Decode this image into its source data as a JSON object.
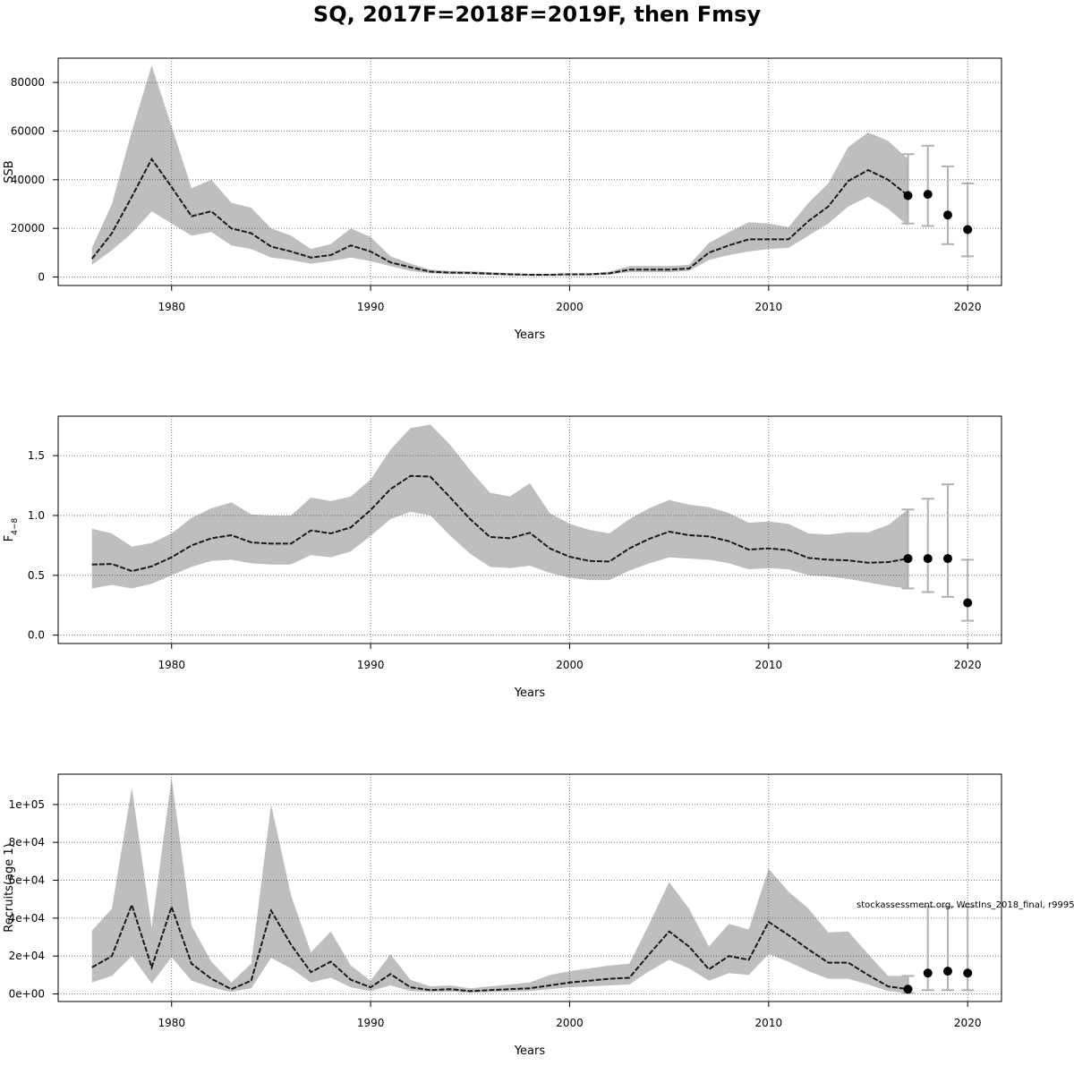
{
  "title": "SQ, 2017F=2018F=2019F, then Fmsy",
  "watermark": "stockassessment.org, WestIns_2018_final, r9995",
  "colors": {
    "band": "#bebebe",
    "line": "#1a1a1a",
    "errorbar": "#b0b0b0",
    "point": "#000000",
    "grid": "#555555"
  },
  "chart_data": [
    {
      "type": "line",
      "ylabel": "SSB",
      "xlabel": "Years",
      "xlim": [
        1974.3,
        2021.7
      ],
      "ylim": [
        -3500,
        90000
      ],
      "xticks": [
        1980,
        1990,
        2000,
        2010,
        2020
      ],
      "yticks": [
        0,
        20000,
        40000,
        60000,
        80000
      ],
      "ytick_labels": [
        "0",
        "20000",
        "40000",
        "60000",
        "80000"
      ],
      "grid": true,
      "x": [
        1976,
        1977,
        1978,
        1979,
        1980,
        1981,
        1982,
        1983,
        1984,
        1985,
        1986,
        1987,
        1988,
        1989,
        1990,
        1991,
        1992,
        1993,
        1994,
        1995,
        1996,
        1997,
        1998,
        1999,
        2000,
        2001,
        2002,
        2003,
        2004,
        2005,
        2006,
        2007,
        2008,
        2009,
        2010,
        2011,
        2012,
        2013,
        2014,
        2015,
        2016,
        2017
      ],
      "estimate": [
        7500,
        18000,
        33000,
        48500,
        37000,
        25000,
        27000,
        20000,
        18000,
        12500,
        10500,
        8000,
        9000,
        13000,
        10500,
        6000,
        4000,
        2200,
        1800,
        1700,
        1400,
        1100,
        900,
        900,
        1100,
        1100,
        1500,
        3000,
        3000,
        3000,
        3500,
        10000,
        13000,
        15500,
        15500,
        15500,
        23000,
        29000,
        39500,
        44000,
        40000,
        33500
      ],
      "lower": [
        5000,
        11000,
        18000,
        27000,
        22000,
        17000,
        18500,
        13000,
        11500,
        8000,
        7000,
        5500,
        6500,
        8000,
        6500,
        4500,
        2500,
        1500,
        1200,
        1100,
        800,
        600,
        500,
        500,
        700,
        700,
        1000,
        2000,
        2000,
        2000,
        2500,
        7000,
        9000,
        10500,
        11500,
        12000,
        17000,
        22000,
        29000,
        33000,
        28000,
        21000
      ],
      "upper": [
        12000,
        30000,
        60000,
        87000,
        62000,
        36500,
        40000,
        30500,
        28500,
        20000,
        17000,
        11500,
        13500,
        20000,
        16500,
        8500,
        5500,
        3000,
        2500,
        2400,
        2000,
        1600,
        1300,
        1300,
        1500,
        1500,
        2200,
        4500,
        4500,
        4500,
        5000,
        14000,
        18500,
        22500,
        22000,
        20500,
        30500,
        38500,
        53500,
        59500,
        56000,
        48500
      ],
      "forecast": {
        "x": [
          2017,
          2018,
          2019,
          2020
        ],
        "median": [
          33500,
          34000,
          25500,
          19500
        ],
        "lower": [
          22000,
          21000,
          13500,
          8500
        ],
        "upper": [
          50500,
          54000,
          45500,
          38500
        ]
      }
    },
    {
      "type": "line",
      "ylabel": "F",
      "ylabel_subscript": "4−8",
      "xlabel": "Years",
      "xlim": [
        1974.3,
        2021.7
      ],
      "ylim": [
        -0.07,
        1.83
      ],
      "xticks": [
        1980,
        1990,
        2000,
        2010,
        2020
      ],
      "yticks": [
        0.0,
        0.5,
        1.0,
        1.5
      ],
      "ytick_labels": [
        "0.0",
        "0.5",
        "1.0",
        "1.5"
      ],
      "grid": true,
      "x": [
        1976,
        1977,
        1978,
        1979,
        1980,
        1981,
        1982,
        1983,
        1984,
        1985,
        1986,
        1987,
        1988,
        1989,
        1990,
        1991,
        1992,
        1993,
        1994,
        1995,
        1996,
        1997,
        1998,
        1999,
        2000,
        2001,
        2002,
        2003,
        2004,
        2005,
        2006,
        2007,
        2008,
        2009,
        2010,
        2011,
        2012,
        2013,
        2014,
        2015,
        2016,
        2017
      ],
      "estimate": [
        0.59,
        0.595,
        0.535,
        0.575,
        0.65,
        0.75,
        0.81,
        0.835,
        0.775,
        0.765,
        0.765,
        0.875,
        0.85,
        0.9,
        1.045,
        1.22,
        1.33,
        1.325,
        1.15,
        0.97,
        0.82,
        0.81,
        0.855,
        0.725,
        0.655,
        0.62,
        0.615,
        0.725,
        0.805,
        0.865,
        0.835,
        0.825,
        0.785,
        0.715,
        0.725,
        0.71,
        0.645,
        0.63,
        0.625,
        0.605,
        0.61,
        0.64
      ],
      "lower": [
        0.39,
        0.42,
        0.39,
        0.43,
        0.5,
        0.57,
        0.62,
        0.63,
        0.6,
        0.59,
        0.59,
        0.67,
        0.65,
        0.7,
        0.83,
        0.97,
        1.03,
        1.0,
        0.83,
        0.68,
        0.57,
        0.56,
        0.58,
        0.52,
        0.48,
        0.46,
        0.46,
        0.54,
        0.6,
        0.65,
        0.64,
        0.63,
        0.6,
        0.55,
        0.56,
        0.55,
        0.5,
        0.49,
        0.47,
        0.44,
        0.41,
        0.39
      ],
      "upper": [
        0.89,
        0.85,
        0.74,
        0.77,
        0.85,
        0.98,
        1.06,
        1.11,
        1.01,
        1.0,
        1.0,
        1.15,
        1.12,
        1.16,
        1.3,
        1.55,
        1.73,
        1.76,
        1.59,
        1.38,
        1.19,
        1.16,
        1.27,
        1.02,
        0.93,
        0.88,
        0.85,
        0.97,
        1.06,
        1.13,
        1.09,
        1.07,
        1.02,
        0.94,
        0.95,
        0.93,
        0.85,
        0.84,
        0.86,
        0.86,
        0.92,
        1.05
      ],
      "forecast": {
        "x": [
          2017,
          2018,
          2019,
          2020
        ],
        "median": [
          0.64,
          0.64,
          0.64,
          0.27
        ],
        "lower": [
          0.39,
          0.36,
          0.32,
          0.12
        ],
        "upper": [
          1.05,
          1.14,
          1.26,
          0.63
        ]
      }
    },
    {
      "type": "line",
      "ylabel": "Recruits(age 1)",
      "xlabel": "Years",
      "xlim": [
        1974.3,
        2021.7
      ],
      "ylim": [
        -4000,
        116000
      ],
      "xticks": [
        1980,
        1990,
        2000,
        2010,
        2020
      ],
      "yticks": [
        0,
        20000,
        40000,
        60000,
        80000,
        100000
      ],
      "ytick_labels": [
        "0e+00",
        "2e+04",
        "4e+04",
        "6e+04",
        "8e+04",
        "1e+05"
      ],
      "grid": true,
      "x": [
        1976,
        1977,
        1978,
        1979,
        1980,
        1981,
        1982,
        1983,
        1984,
        1985,
        1986,
        1987,
        1988,
        1989,
        1990,
        1991,
        1992,
        1993,
        1994,
        1995,
        1996,
        1997,
        1998,
        1999,
        2000,
        2001,
        2002,
        2003,
        2004,
        2005,
        2006,
        2007,
        2008,
        2009,
        2010,
        2011,
        2012,
        2013,
        2014,
        2015,
        2016,
        2017
      ],
      "estimate": [
        14000,
        20000,
        47000,
        14000,
        46000,
        16000,
        8000,
        2500,
        7000,
        44000,
        26000,
        11500,
        17000,
        7500,
        3500,
        10500,
        3500,
        2000,
        2500,
        1500,
        2000,
        2500,
        3000,
        4500,
        6000,
        7000,
        8000,
        8500,
        21000,
        33000,
        25000,
        13000,
        20000,
        18000,
        38000,
        31000,
        23500,
        16500,
        16500,
        10000,
        4000,
        2500
      ],
      "lower": [
        6000,
        9500,
        20000,
        5500,
        19500,
        7000,
        3500,
        1000,
        3000,
        19000,
        13500,
        6000,
        8500,
        3500,
        1500,
        4500,
        1500,
        1000,
        1200,
        700,
        1000,
        1200,
        1500,
        2500,
        3500,
        4000,
        4500,
        5000,
        12000,
        18000,
        13500,
        7000,
        11000,
        10000,
        21000,
        17000,
        12000,
        8000,
        8000,
        5000,
        1500,
        500
      ],
      "upper": [
        33500,
        45000,
        109000,
        35000,
        114000,
        36000,
        17000,
        6000,
        16000,
        100000,
        52000,
        22000,
        33000,
        15000,
        7000,
        21000,
        7500,
        4000,
        4500,
        3000,
        4000,
        5000,
        6000,
        10000,
        12000,
        13500,
        15000,
        16000,
        37000,
        59000,
        45000,
        25000,
        37000,
        34000,
        66000,
        54000,
        45000,
        32500,
        33000,
        21000,
        9500,
        9500
      ],
      "forecast": {
        "x": [
          2017,
          2018,
          2019,
          2020
        ],
        "median": [
          2500,
          11000,
          12000,
          11000
        ],
        "lower": [
          500,
          2000,
          2000,
          2000
        ],
        "upper": [
          9500,
          46000,
          46000,
          46000
        ]
      }
    }
  ]
}
